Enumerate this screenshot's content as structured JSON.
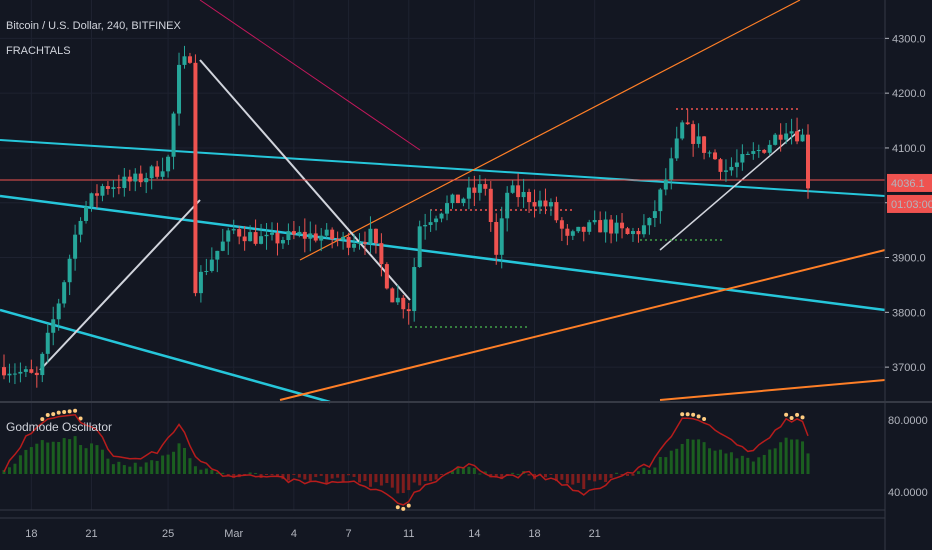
{
  "header": {
    "title": "Bitcoin / U.S. Dollar, 240, BITFINEX",
    "indicator": "FRACHTALS"
  },
  "oscillator": {
    "title": "Godmode Oscillator"
  },
  "price_axis": {
    "ticks": [
      "4300.0",
      "4200.0",
      "4100.0",
      "4000.0",
      "3900.0",
      "3800.0",
      "3700.0"
    ],
    "last_price": "4036.1",
    "countdown": "01:03:00"
  },
  "osc_axis": {
    "ticks": [
      "80.0000",
      "40.0000"
    ]
  },
  "time_axis": {
    "ticks": [
      "18",
      "21",
      "25",
      "Mar",
      "4",
      "7",
      "11",
      "14",
      "18",
      "21"
    ]
  },
  "colors": {
    "background": "#131722",
    "up": "#26a69a",
    "down": "#ef5350",
    "cyan_line": "#26c6da",
    "orange_line": "#ff7f27",
    "last_price_bg": "#ef5350",
    "osc_line": "#b71c1c",
    "osc_dots": "#ffcc80"
  },
  "chart_data": {
    "type": "candlestick",
    "ylim": [
      3640,
      4370
    ],
    "osc_ylim": [
      30,
      90
    ],
    "x": [
      "18",
      "21",
      "25",
      "Mar",
      "4",
      "7",
      "11",
      "14",
      "18",
      "21"
    ],
    "price_keypoints": [
      [
        0,
        3700
      ],
      [
        6,
        3680
      ],
      [
        10,
        3820
      ],
      [
        14,
        3980
      ],
      [
        18,
        4030
      ],
      [
        24,
        4040
      ],
      [
        28,
        4060
      ],
      [
        30,
        4080
      ],
      [
        32,
        4240
      ],
      [
        34,
        4270
      ],
      [
        35,
        3850
      ],
      [
        38,
        3900
      ],
      [
        42,
        3950
      ],
      [
        48,
        3930
      ],
      [
        54,
        3940
      ],
      [
        58,
        3940
      ],
      [
        62,
        3930
      ],
      [
        67,
        3940
      ],
      [
        71,
        3830
      ],
      [
        74,
        3810
      ],
      [
        76,
        3960
      ],
      [
        80,
        3990
      ],
      [
        84,
        4010
      ],
      [
        88,
        4030
      ],
      [
        90,
        3900
      ],
      [
        92,
        4020
      ],
      [
        96,
        4010
      ],
      [
        100,
        3990
      ],
      [
        103,
        3930
      ],
      [
        106,
        3950
      ],
      [
        110,
        3960
      ],
      [
        114,
        3940
      ],
      [
        118,
        3960
      ],
      [
        122,
        4070
      ],
      [
        124,
        4140
      ],
      [
        128,
        4100
      ],
      [
        132,
        4060
      ],
      [
        136,
        4080
      ],
      [
        140,
        4110
      ],
      [
        143,
        4140
      ],
      [
        146,
        4120
      ],
      [
        147,
        4036
      ]
    ],
    "osc_keypoints": [
      [
        0,
        52
      ],
      [
        4,
        70
      ],
      [
        8,
        80
      ],
      [
        13,
        82
      ],
      [
        17,
        74
      ],
      [
        20,
        60
      ],
      [
        24,
        58
      ],
      [
        28,
        62
      ],
      [
        32,
        78
      ],
      [
        35,
        60
      ],
      [
        40,
        50
      ],
      [
        48,
        48
      ],
      [
        56,
        45
      ],
      [
        64,
        45
      ],
      [
        70,
        38
      ],
      [
        73,
        33
      ],
      [
        76,
        42
      ],
      [
        82,
        52
      ],
      [
        86,
        55
      ],
      [
        90,
        48
      ],
      [
        96,
        50
      ],
      [
        102,
        45
      ],
      [
        106,
        38
      ],
      [
        112,
        48
      ],
      [
        118,
        55
      ],
      [
        122,
        72
      ],
      [
        124,
        80
      ],
      [
        128,
        79
      ],
      [
        132,
        72
      ],
      [
        136,
        62
      ],
      [
        140,
        70
      ],
      [
        143,
        80
      ],
      [
        146,
        79
      ],
      [
        147,
        70
      ]
    ]
  }
}
